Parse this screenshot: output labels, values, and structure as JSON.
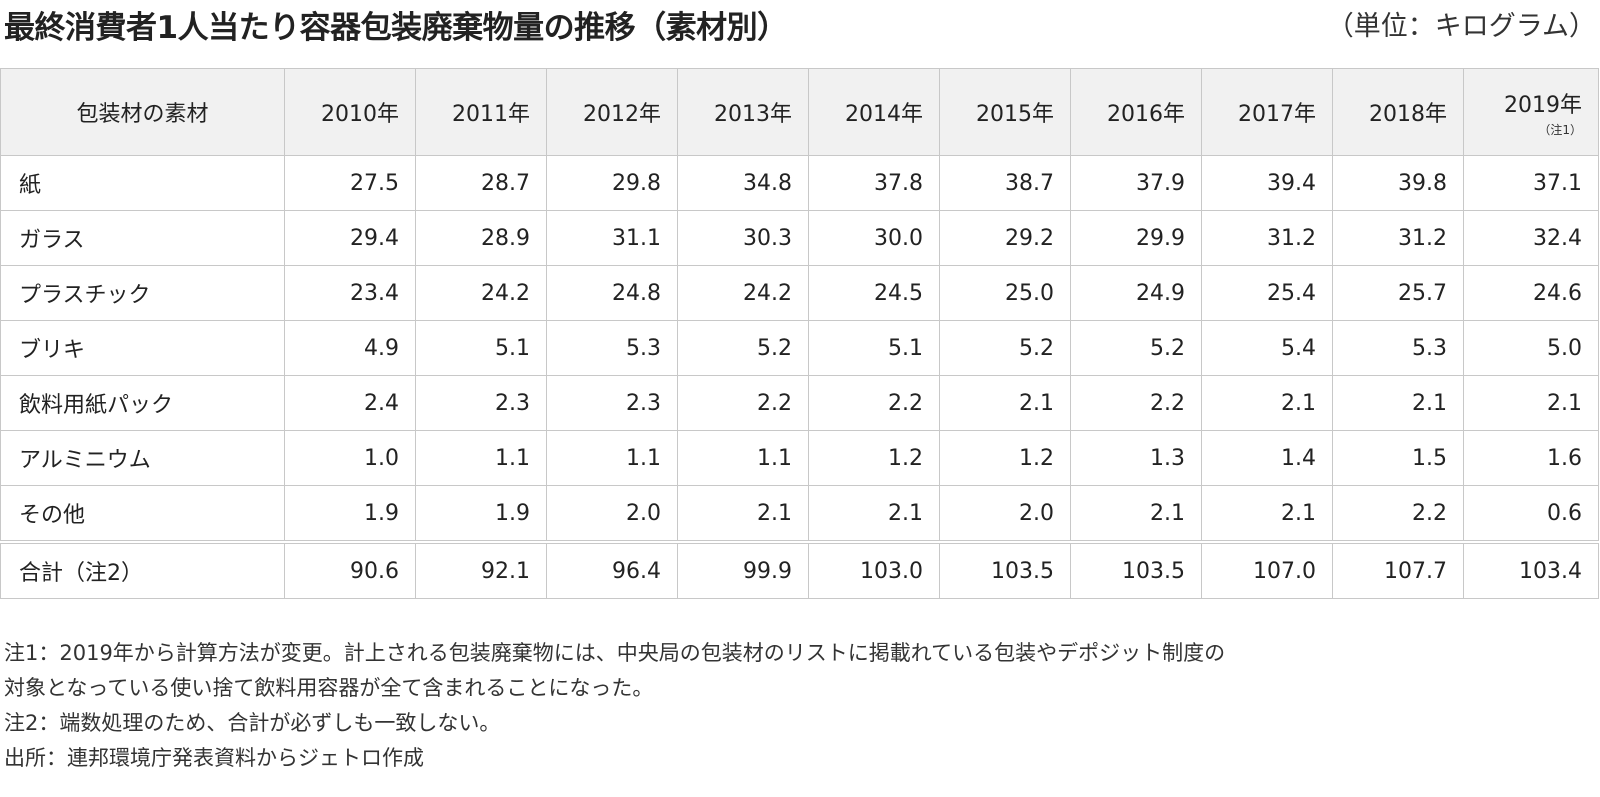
{
  "header": {
    "title": "最終消費者1人当たり容器包装廃棄物量の推移（素材別）",
    "unit": "（単位：キログラム）"
  },
  "table": {
    "material_header": "包装材の素材",
    "years": [
      {
        "label": "2010年",
        "note": ""
      },
      {
        "label": "2011年",
        "note": ""
      },
      {
        "label": "2012年",
        "note": ""
      },
      {
        "label": "2013年",
        "note": ""
      },
      {
        "label": "2014年",
        "note": ""
      },
      {
        "label": "2015年",
        "note": ""
      },
      {
        "label": "2016年",
        "note": ""
      },
      {
        "label": "2017年",
        "note": ""
      },
      {
        "label": "2018年",
        "note": ""
      },
      {
        "label": "2019年",
        "note": "（注1）"
      }
    ],
    "rows": [
      {
        "material": "紙",
        "values": [
          "27.5",
          "28.7",
          "29.8",
          "34.8",
          "37.8",
          "38.7",
          "37.9",
          "39.4",
          "39.8",
          "37.1"
        ]
      },
      {
        "material": "ガラス",
        "values": [
          "29.4",
          "28.9",
          "31.1",
          "30.3",
          "30.0",
          "29.2",
          "29.9",
          "31.2",
          "31.2",
          "32.4"
        ]
      },
      {
        "material": "プラスチック",
        "values": [
          "23.4",
          "24.2",
          "24.8",
          "24.2",
          "24.5",
          "25.0",
          "24.9",
          "25.4",
          "25.7",
          "24.6"
        ]
      },
      {
        "material": "ブリキ",
        "values": [
          "4.9",
          "5.1",
          "5.3",
          "5.2",
          "5.1",
          "5.2",
          "5.2",
          "5.4",
          "5.3",
          "5.0"
        ]
      },
      {
        "material": "飲料用紙パック",
        "values": [
          "2.4",
          "2.3",
          "2.3",
          "2.2",
          "2.2",
          "2.1",
          "2.2",
          "2.1",
          "2.1",
          "2.1"
        ]
      },
      {
        "material": "アルミニウム",
        "values": [
          "1.0",
          "1.1",
          "1.1",
          "1.1",
          "1.2",
          "1.2",
          "1.3",
          "1.4",
          "1.5",
          "1.6"
        ]
      },
      {
        "material": "その他",
        "values": [
          "1.9",
          "1.9",
          "2.0",
          "2.1",
          "2.1",
          "2.0",
          "2.1",
          "2.1",
          "2.2",
          "0.6"
        ]
      }
    ],
    "total": {
      "material": "合計（注2）",
      "values": [
        "90.6",
        "92.1",
        "96.4",
        "99.9",
        "103.0",
        "103.5",
        "103.5",
        "107.0",
        "107.7",
        "103.4"
      ]
    }
  },
  "notes": [
    "注1：2019年から計算方法が変更。計上される包装廃棄物には、中央局の包装材のリストに掲載れている包装やデポジット制度の",
    "対象となっている使い捨て飲料用容器が全て含まれることになった。",
    "注2：端数処理のため、合計が必ずしも一致しない。",
    "出所：連邦環境庁発表資料からジェトロ作成"
  ]
}
